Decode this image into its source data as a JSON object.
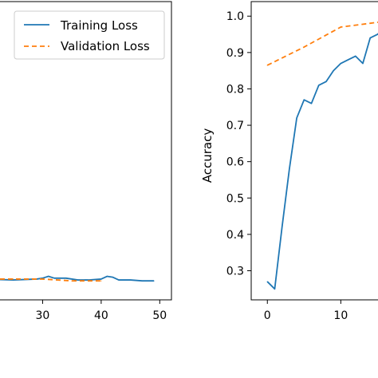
{
  "chart_data": [
    {
      "type": "line",
      "xlabel": "",
      "ylabel": "",
      "xlim": [
        20,
        52
      ],
      "ylim": [
        -0.2,
        3.1
      ],
      "xticks": [
        30,
        40,
        50
      ],
      "legend": {
        "placement": "top-right",
        "entries": [
          "Training Loss",
          "Validation Loss"
        ]
      },
      "series": [
        {
          "name": "Training Loss",
          "color": "#1f77b4",
          "style": "solid",
          "x": [
            20,
            25,
            29,
            30,
            31,
            32,
            34,
            36,
            38,
            40,
            41,
            42,
            43,
            45,
            47,
            49
          ],
          "y": [
            0.03,
            0.02,
            0.03,
            0.04,
            0.06,
            0.04,
            0.04,
            0.02,
            0.02,
            0.03,
            0.06,
            0.05,
            0.02,
            0.02,
            0.01,
            0.01
          ]
        },
        {
          "name": "Validation Loss",
          "color": "#ff7f0e",
          "style": "dashed",
          "x": [
            20,
            25,
            30,
            35,
            40
          ],
          "y": [
            0.03,
            0.03,
            0.03,
            0.01,
            0.01
          ]
        }
      ]
    },
    {
      "type": "line",
      "xlabel": "",
      "ylabel": "Accuracy",
      "xlim": [
        -2.2,
        15.5
      ],
      "ylim": [
        0.22,
        1.04
      ],
      "xticks": [
        0,
        10
      ],
      "yticks": [
        0.3,
        0.4,
        0.5,
        0.6,
        0.7,
        0.8,
        0.9,
        1.0
      ],
      "series": [
        {
          "color": "#1f77b4",
          "style": "solid",
          "x": [
            0,
            1,
            2,
            3,
            4,
            5,
            6,
            7,
            8,
            9,
            10,
            11,
            12,
            13,
            14,
            15,
            15.5
          ],
          "y": [
            0.27,
            0.25,
            0.42,
            0.58,
            0.72,
            0.77,
            0.76,
            0.81,
            0.82,
            0.85,
            0.87,
            0.88,
            0.89,
            0.87,
            0.94,
            0.95,
            0.96
          ]
        },
        {
          "color": "#ff7f0e",
          "style": "dashed",
          "x": [
            0,
            5,
            10,
            15,
            15.5
          ],
          "y": [
            0.865,
            0.915,
            0.97,
            0.983,
            0.985
          ]
        }
      ]
    }
  ]
}
